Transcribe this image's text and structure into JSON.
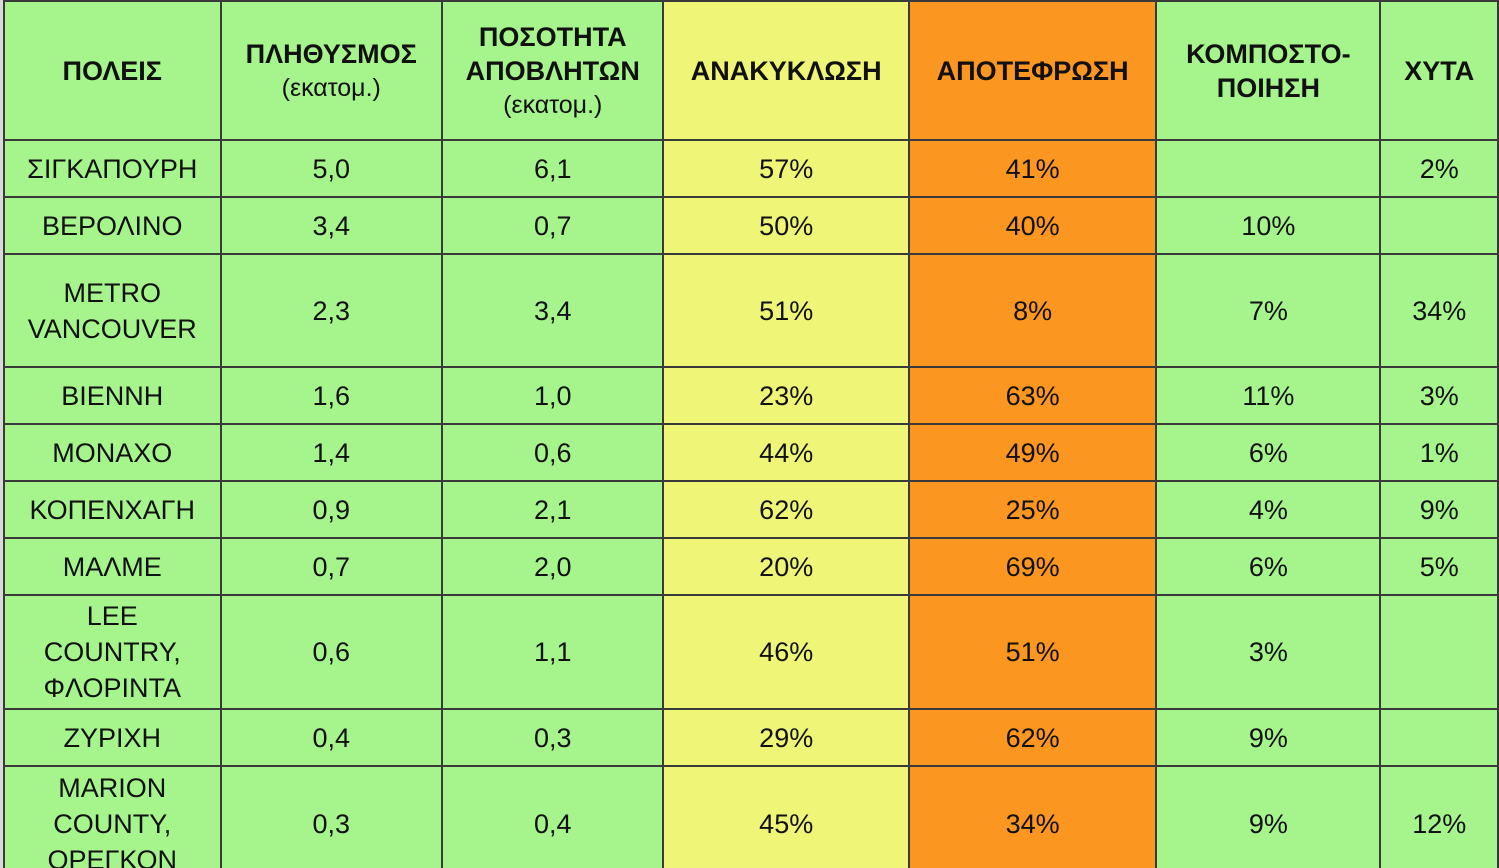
{
  "headers": {
    "city": "ΠΟΛΕΙΣ",
    "population": "ΠΛΗΘΥΣΜΟΣ",
    "population_unit": "(εκατομ.)",
    "waste": "ΠΟΣΟΤΗΤΑ ΑΠΟΒΛΗΤΩΝ",
    "waste_unit": "(εκατομ.)",
    "recycling": "ΑΝΑΚΥΚΛΩΣΗ",
    "incineration": "ΑΠΟΤΕΦΡΩΣΗ",
    "composting": "ΚΟΜΠΟΣΤΟ-ΠΟΙΗΣΗ",
    "landfill": "ΧΥΤΑ"
  },
  "colors": {
    "green": "#a6f48c",
    "yellow": "#eff576",
    "orange": "#fb9621"
  },
  "rows": [
    {
      "city": "ΣΙΓΚΑΠΟΥΡΗ",
      "population": "5,0",
      "waste": "6,1",
      "recycling": "57%",
      "incineration": "41%",
      "composting": "",
      "landfill": "2%"
    },
    {
      "city": "ΒΕΡΟΛΙΝΟ",
      "population": "3,4",
      "waste": "0,7",
      "recycling": "50%",
      "incineration": "40%",
      "composting": "10%",
      "landfill": ""
    },
    {
      "city": "METRO\nVANCOUVER",
      "population": "2,3",
      "waste": "3,4",
      "recycling": "51%",
      "incineration": "8%",
      "composting": "7%",
      "landfill": "34%"
    },
    {
      "city": "ΒΙΕΝΝΗ",
      "population": "1,6",
      "waste": "1,0",
      "recycling": "23%",
      "incineration": "63%",
      "composting": "11%",
      "landfill": "3%"
    },
    {
      "city": "ΜΟΝΑΧΟ",
      "population": "1,4",
      "waste": "0,6",
      "recycling": "44%",
      "incineration": "49%",
      "composting": "6%",
      "landfill": "1%"
    },
    {
      "city": "ΚΟΠΕΝΧΑΓΗ",
      "population": "0,9",
      "waste": "2,1",
      "recycling": "62%",
      "incineration": "25%",
      "composting": "4%",
      "landfill": "9%"
    },
    {
      "city": "ΜΑΛΜΕ",
      "population": "0,7",
      "waste": "2,0",
      "recycling": "20%",
      "incineration": "69%",
      "composting": "6%",
      "landfill": "5%"
    },
    {
      "city": "LEE\nCOUNTRY,\nΦΛΟΡΙΝΤΑ",
      "population": "0,6",
      "waste": "1,1",
      "recycling": "46%",
      "incineration": "51%",
      "composting": "3%",
      "landfill": ""
    },
    {
      "city": "ΖΥΡΙΧΗ",
      "population": "0,4",
      "waste": "0,3",
      "recycling": "29%",
      "incineration": "62%",
      "composting": "9%",
      "landfill": ""
    },
    {
      "city": "MARION\nCOUNTY,\nΟΡΕΓΚΟΝ",
      "population": "0,3",
      "waste": "0,4",
      "recycling": "45%",
      "incineration": "34%",
      "composting": "9%",
      "landfill": "12%"
    }
  ]
}
